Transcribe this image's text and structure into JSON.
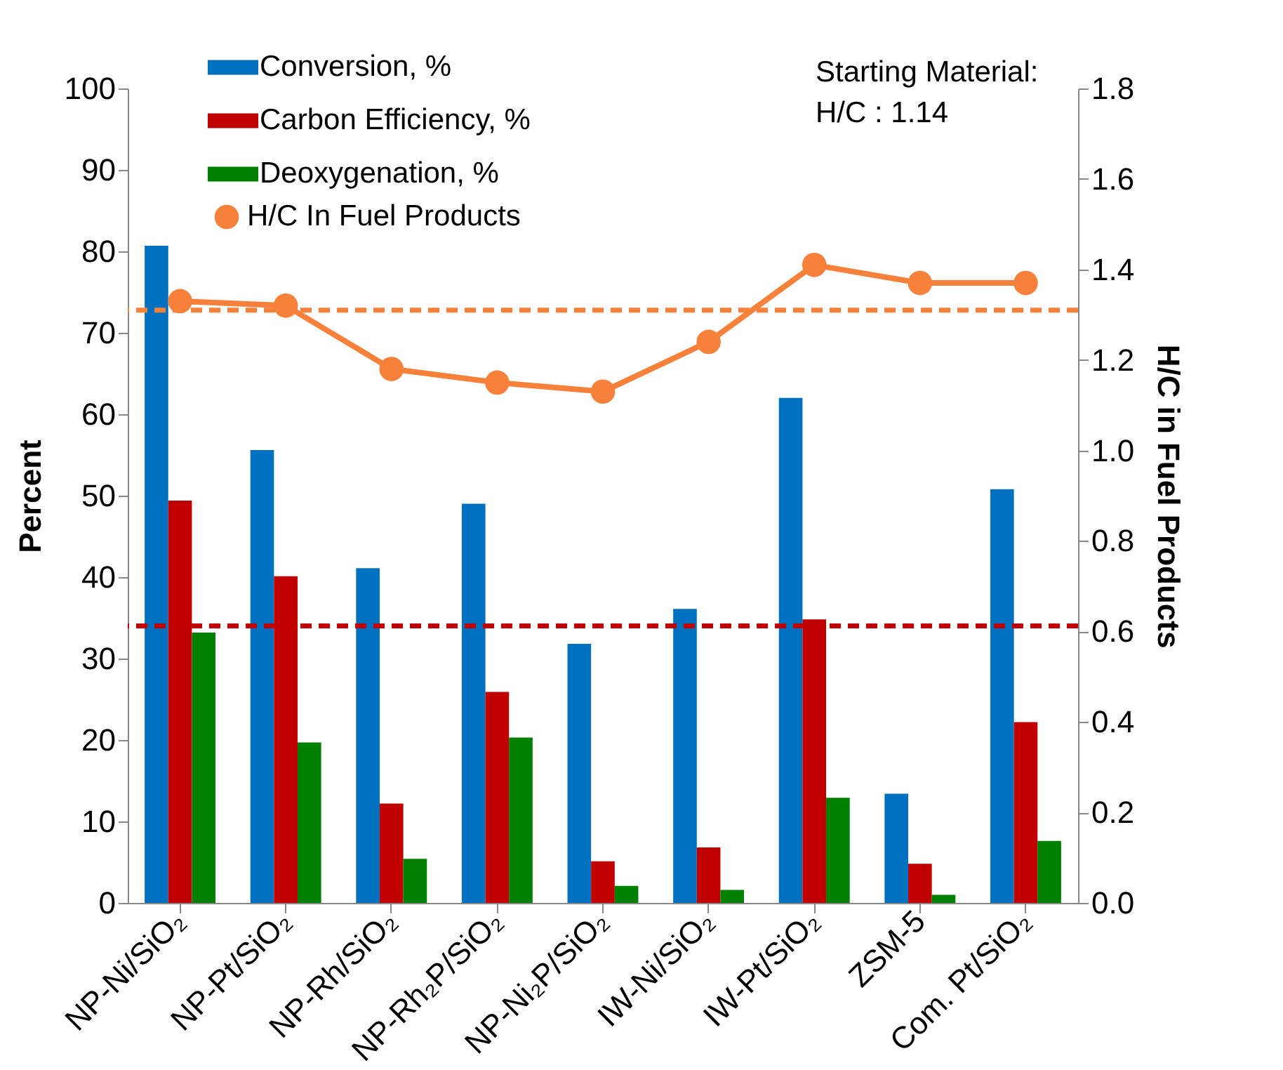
{
  "chart_data": {
    "type": "bar",
    "ylabel": "Percent",
    "y2label": "H/C in Fuel Products",
    "categories": [
      "NP-Ni/SiO₂",
      "NP-Pt/SiO₂",
      "NP-Rh/SiO₂",
      "NP-Rh₂P/SiO₂",
      "NP-Ni₂P/SiO₂",
      "IW-Ni/SiO₂",
      "IW-Pt/SiO₂",
      "ZSM-5",
      "Com. Pt/SiO₂"
    ],
    "series": [
      {
        "name": "Conversion, %",
        "color": "#0070c0",
        "values": [
          80.7,
          55.6,
          41.1,
          49.0,
          31.8,
          36.1,
          62.0,
          13.4,
          50.8
        ]
      },
      {
        "name": "Carbon Efficiency, %",
        "color": "#c00000",
        "values": [
          49.4,
          40.1,
          12.2,
          25.9,
          5.1,
          6.8,
          34.8,
          4.8,
          22.2
        ]
      },
      {
        "name": "Deoxygenation, %",
        "color": "#008000",
        "values": [
          33.2,
          19.7,
          5.4,
          20.3,
          2.1,
          1.6,
          12.9,
          1.0,
          7.6
        ]
      },
      {
        "name": "H/C In Fuel Products",
        "type": "line",
        "axis": "y2",
        "color": "#f7813a",
        "values": [
          1.33,
          1.32,
          1.18,
          1.15,
          1.13,
          1.24,
          1.41,
          1.37,
          1.37
        ]
      }
    ],
    "ylim": [
      0,
      100
    ],
    "yticks": [
      0,
      10,
      20,
      30,
      40,
      50,
      60,
      70,
      80,
      90,
      100
    ],
    "y2lim": [
      0,
      1.8
    ],
    "y2ticks": [
      {
        "value": 0,
        "label": "0.0"
      },
      0.2,
      0.4,
      0.6,
      0.8,
      {
        "value": 1,
        "label": "1.0"
      },
      1.2,
      1.4,
      1.6,
      1.8
    ],
    "ref_lines": [
      {
        "axis": "y",
        "value": 34,
        "color": "#c00000",
        "line_style": "dashed"
      },
      {
        "axis": "y2",
        "value": 1.31,
        "color": "#f7813a",
        "line_style": "dashed"
      }
    ],
    "annotations": [
      "Starting Material:\nH/C : 1.14"
    ],
    "marker": "circle",
    "grid": false,
    "legend": "top"
  }
}
